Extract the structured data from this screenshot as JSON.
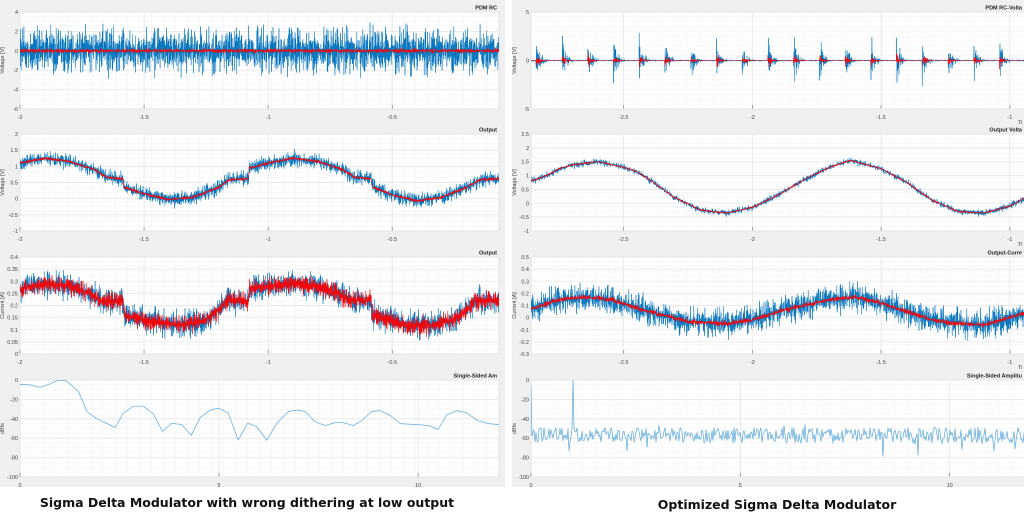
{
  "captions": {
    "left": "Sigma Delta Modulator with wrong dithering at low output",
    "right": "Optimized Sigma Delta Modulator"
  },
  "colors": {
    "raw": "#0072BD",
    "raw_light": "#5aa9dc",
    "filtered": "#FF0000",
    "grid": "#e6e6e6",
    "axes": "#c8c8c8",
    "figure_bg": "#f0f0f0"
  },
  "chart_data": [
    {
      "id": "left-pdm",
      "panel": "left",
      "type": "line",
      "title": "PDM RC",
      "ylabel": "Voltage [V]",
      "xlabel": "",
      "xlim": [
        -2,
        -0.07
      ],
      "ylim": [
        -6,
        4
      ],
      "xticks": [
        -2,
        -1.5,
        -1,
        -0.5
      ],
      "yticks": [
        4,
        2,
        0,
        -2,
        -4,
        -6
      ],
      "grid": true,
      "series": [
        {
          "color": "#0072BD",
          "kind": "noise",
          "mean_x": [
            -2,
            -0.07
          ],
          "mean_y": [
            0,
            0
          ],
          "spread": 3.0
        },
        {
          "color": "#FF0000",
          "kind": "noise",
          "mean_x": [
            -2,
            -0.07
          ],
          "mean_y": [
            0,
            0
          ],
          "spread": 0.3
        }
      ]
    },
    {
      "id": "left-vout",
      "panel": "left",
      "type": "line",
      "title": "Output",
      "ylabel": "Voltage [V]",
      "xlabel": "",
      "xlim": [
        -2,
        -0.07
      ],
      "ylim": [
        -1,
        2
      ],
      "xticks": [
        -2,
        -1.5,
        -1,
        -0.5
      ],
      "yticks": [
        2,
        1.5,
        1,
        0.5,
        0,
        -0.5,
        -1
      ],
      "grid": true,
      "series": [
        {
          "color": "#0072BD",
          "kind": "noise",
          "spread": 0.3,
          "mean_x": [
            -2,
            -1.9,
            -1.8,
            -1.7,
            -1.65,
            -1.585,
            -1.58,
            -1.5,
            -1.4,
            -1.3,
            -1.2,
            -1.16,
            -1.08,
            -1.075,
            -1.0,
            -0.9,
            -0.8,
            -0.7,
            -0.65,
            -0.585,
            -0.58,
            -0.5,
            -0.4,
            -0.3,
            -0.2,
            -0.15,
            -0.07
          ],
          "mean_y": [
            1.1,
            1.25,
            1.15,
            0.9,
            0.65,
            0.62,
            0.35,
            0.15,
            -0.03,
            0.05,
            0.35,
            0.58,
            0.62,
            0.95,
            1.1,
            1.25,
            1.15,
            0.9,
            0.65,
            0.62,
            0.35,
            0.12,
            -0.07,
            0.05,
            0.35,
            0.58,
            0.62
          ]
        },
        {
          "color": "#FF0000",
          "kind": "noise",
          "spread": 0.07,
          "mean_x": [
            -2,
            -1.9,
            -1.8,
            -1.7,
            -1.65,
            -1.585,
            -1.58,
            -1.5,
            -1.4,
            -1.3,
            -1.2,
            -1.16,
            -1.08,
            -1.075,
            -1.0,
            -0.9,
            -0.8,
            -0.7,
            -0.65,
            -0.585,
            -0.58,
            -0.5,
            -0.4,
            -0.3,
            -0.2,
            -0.15,
            -0.07
          ],
          "mean_y": [
            1.1,
            1.25,
            1.15,
            0.9,
            0.65,
            0.62,
            0.35,
            0.15,
            -0.03,
            0.05,
            0.35,
            0.58,
            0.62,
            0.95,
            1.1,
            1.25,
            1.15,
            0.9,
            0.65,
            0.62,
            0.35,
            0.12,
            -0.07,
            0.05,
            0.35,
            0.58,
            0.62
          ]
        }
      ]
    },
    {
      "id": "left-iout",
      "panel": "left",
      "type": "line",
      "title": "Output",
      "ylabel": "Current [A]",
      "xlabel": "",
      "xlim": [
        -2,
        -0.07
      ],
      "ylim": [
        0,
        0.4
      ],
      "xticks": [
        -2,
        -1.5,
        -1,
        -0.5
      ],
      "yticks": [
        0.4,
        0.35,
        0.3,
        0.25,
        0.2,
        0.15,
        0.1,
        0.05,
        0
      ],
      "grid": true,
      "series": [
        {
          "color": "#0072BD",
          "kind": "noise",
          "spread": 0.07,
          "mean_x": [
            -2,
            -1.9,
            -1.8,
            -1.72,
            -1.67,
            -1.585,
            -1.58,
            -1.45,
            -1.35,
            -1.25,
            -1.18,
            -1.17,
            -1.08,
            -1.075,
            -0.9,
            -0.8,
            -0.72,
            -0.67,
            -0.585,
            -0.58,
            -0.45,
            -0.35,
            -0.25,
            -0.18,
            -0.17,
            -0.07
          ],
          "mean_y": [
            0.27,
            0.29,
            0.28,
            0.25,
            0.22,
            0.22,
            0.16,
            0.13,
            0.12,
            0.14,
            0.2,
            0.22,
            0.22,
            0.27,
            0.29,
            0.28,
            0.25,
            0.22,
            0.22,
            0.16,
            0.12,
            0.12,
            0.14,
            0.2,
            0.22,
            0.22
          ]
        },
        {
          "color": "#FF0000",
          "kind": "noise",
          "spread": 0.05,
          "mean_x": [
            -2,
            -1.9,
            -1.8,
            -1.72,
            -1.67,
            -1.585,
            -1.58,
            -1.45,
            -1.35,
            -1.25,
            -1.18,
            -1.17,
            -1.08,
            -1.075,
            -0.9,
            -0.8,
            -0.72,
            -0.67,
            -0.585,
            -0.58,
            -0.45,
            -0.35,
            -0.25,
            -0.18,
            -0.17,
            -0.07
          ],
          "mean_y": [
            0.27,
            0.29,
            0.28,
            0.25,
            0.22,
            0.22,
            0.16,
            0.13,
            0.12,
            0.14,
            0.2,
            0.22,
            0.22,
            0.27,
            0.29,
            0.28,
            0.25,
            0.22,
            0.22,
            0.16,
            0.12,
            0.12,
            0.14,
            0.2,
            0.22,
            0.22
          ]
        }
      ]
    },
    {
      "id": "left-fft",
      "panel": "left",
      "type": "line",
      "title": "Single-Sided Am",
      "ylabel": "dBfs",
      "xlabel": "",
      "xlim": [
        0,
        12.03
      ],
      "ylim": [
        -100,
        0
      ],
      "xticks": [
        0,
        5,
        10
      ],
      "yticks": [
        0,
        -20,
        -40,
        -60,
        -80,
        -100
      ],
      "grid": true,
      "series": [
        {
          "color": "#5aa9dc",
          "kind": "line",
          "x": [
            0,
            0.25,
            0.5,
            0.75,
            0.96,
            1.17,
            1.47,
            1.68,
            1.93,
            2.39,
            2.6,
            2.85,
            3.1,
            3.35,
            3.58,
            3.81,
            4.06,
            4.3,
            4.52,
            4.77,
            4.98,
            5.23,
            5.48,
            5.72,
            5.94,
            6.2,
            6.45,
            6.74,
            6.95,
            7.16,
            7.41,
            7.66,
            7.91,
            8.12,
            8.37,
            8.58,
            8.83,
            9.04,
            9.3,
            9.55,
            9.97,
            10.26,
            10.5,
            10.72,
            10.97,
            11.2,
            11.5,
            11.77,
            12.02
          ],
          "y": [
            -4.5,
            -5,
            -7.5,
            -4,
            0,
            -1,
            -12,
            -32.5,
            -40,
            -49,
            -34,
            -27,
            -27,
            -35,
            -53,
            -44.5,
            -46,
            -57,
            -39,
            -31,
            -29,
            -34,
            -62,
            -44.5,
            -48,
            -62,
            -44.5,
            -32.5,
            -31,
            -32.5,
            -43,
            -47,
            -44,
            -44,
            -47,
            -42,
            -32.5,
            -31.5,
            -36.6,
            -45,
            -46,
            -47,
            -51,
            -36,
            -31.5,
            -33.5,
            -42,
            -45,
            -46
          ]
        }
      ]
    },
    {
      "id": "right-pdm",
      "panel": "right",
      "type": "line",
      "title": "PDM RC-Volta",
      "ylabel": "Voltage [V]",
      "xlabel": "Ti",
      "xlim": [
        -2.86,
        -0.84
      ],
      "ylim": [
        -5,
        5
      ],
      "xticks": [
        -2.5,
        -2,
        -1.5,
        -1
      ],
      "yticks": [
        5,
        0,
        -5
      ],
      "grid": true,
      "series": [
        {
          "color": "#0072BD",
          "kind": "bursts",
          "burst_period": 0.1,
          "spread": 3.5,
          "mean_x": [
            -2.86,
            -0.84
          ],
          "mean_y": [
            0,
            0
          ]
        },
        {
          "color": "#FF0000",
          "kind": "bursts",
          "burst_period": 0.1,
          "spread": 1.0,
          "mean_x": [
            -2.86,
            -0.84
          ],
          "mean_y": [
            0,
            0
          ]
        }
      ]
    },
    {
      "id": "right-vout",
      "panel": "right",
      "type": "line",
      "title": "Output Volta",
      "ylabel": "Voltage [V]",
      "xlabel": "Ti",
      "xlim": [
        -2.86,
        -0.84
      ],
      "ylim": [
        -1,
        2.5
      ],
      "xticks": [
        -2.5,
        -2,
        -1.5,
        -1
      ],
      "yticks": [
        2.5,
        2,
        1.5,
        1,
        0.5,
        0,
        -0.5,
        -1
      ],
      "grid": true,
      "series": [
        {
          "color": "#0072BD",
          "kind": "noise",
          "spread": 0.15,
          "mean_x": [
            -2.86,
            -2.8,
            -2.75,
            -2.7,
            -2.6,
            -2.5,
            -2.45,
            -2.4,
            -2.3,
            -2.2,
            -2.1,
            -2.0,
            -1.9,
            -1.8,
            -1.7,
            -1.62,
            -1.5,
            -1.4,
            -1.3,
            -1.2,
            -1.1,
            -1.0,
            -0.9,
            -0.84
          ],
          "mean_y": [
            0.8,
            1.0,
            1.25,
            1.38,
            1.5,
            1.3,
            1.15,
            0.85,
            0.2,
            -0.25,
            -0.35,
            -0.15,
            0.3,
            0.85,
            1.3,
            1.55,
            1.25,
            0.75,
            0.1,
            -0.3,
            -0.35,
            -0.1,
            0.4,
            0.75
          ]
        },
        {
          "color": "#FF0000",
          "kind": "noise",
          "spread": 0.05,
          "mean_x": [
            -2.86,
            -2.8,
            -2.75,
            -2.7,
            -2.6,
            -2.5,
            -2.45,
            -2.4,
            -2.3,
            -2.2,
            -2.1,
            -2.0,
            -1.9,
            -1.8,
            -1.7,
            -1.62,
            -1.5,
            -1.4,
            -1.3,
            -1.2,
            -1.1,
            -1.0,
            -0.9,
            -0.84
          ],
          "mean_y": [
            0.8,
            1.0,
            1.25,
            1.38,
            1.5,
            1.3,
            1.15,
            0.85,
            0.2,
            -0.25,
            -0.35,
            -0.15,
            0.3,
            0.85,
            1.3,
            1.55,
            1.25,
            0.75,
            0.1,
            -0.3,
            -0.35,
            -0.1,
            0.4,
            0.75
          ]
        }
      ]
    },
    {
      "id": "right-iout",
      "panel": "right",
      "type": "line",
      "title": "Output-Curre",
      "ylabel": "Current [A]",
      "xlabel": "Ti",
      "xlim": [
        -2.86,
        -0.84
      ],
      "ylim": [
        -0.3,
        0.5
      ],
      "xticks": [
        -2.5,
        -2,
        -1.5,
        -1
      ],
      "yticks": [
        0.5,
        0.4,
        0.3,
        0.2,
        0.1,
        0,
        -0.1,
        -0.2,
        -0.3
      ],
      "grid": true,
      "series": [
        {
          "color": "#0072BD",
          "kind": "noise",
          "spread": 0.15,
          "mean_x": [
            -2.86,
            -2.75,
            -2.65,
            -2.55,
            -2.45,
            -2.35,
            -2.25,
            -2.1,
            -2.0,
            -1.9,
            -1.8,
            -1.7,
            -1.6,
            -1.5,
            -1.4,
            -1.3,
            -1.2,
            -1.1,
            -1.0,
            -0.9,
            -0.84
          ],
          "mean_y": [
            0.07,
            0.15,
            0.17,
            0.15,
            0.08,
            0.02,
            -0.03,
            -0.05,
            -0.02,
            0.05,
            0.1,
            0.15,
            0.17,
            0.12,
            0.05,
            -0.02,
            -0.05,
            -0.06,
            0.0,
            0.07,
            0.1
          ]
        },
        {
          "color": "#FF0000",
          "kind": "noise",
          "spread": 0.03,
          "mean_x": [
            -2.86,
            -2.75,
            -2.65,
            -2.55,
            -2.45,
            -2.35,
            -2.25,
            -2.1,
            -2.0,
            -1.9,
            -1.8,
            -1.7,
            -1.6,
            -1.5,
            -1.4,
            -1.3,
            -1.2,
            -1.1,
            -1.0,
            -0.9,
            -0.84
          ],
          "mean_y": [
            0.07,
            0.15,
            0.17,
            0.15,
            0.08,
            0.02,
            -0.03,
            -0.05,
            -0.02,
            0.05,
            0.1,
            0.15,
            0.17,
            0.12,
            0.05,
            -0.02,
            -0.05,
            -0.06,
            0.0,
            0.07,
            0.1
          ]
        }
      ]
    },
    {
      "id": "right-fft",
      "panel": "right",
      "type": "line",
      "title": "Single-Sided Amplitu",
      "ylabel": "dBfs",
      "xlabel": "",
      "xlim": [
        0,
        12.42
      ],
      "ylim": [
        -100,
        0
      ],
      "xticks": [
        0,
        5,
        10
      ],
      "yticks": [
        0,
        -20,
        -40,
        -60,
        -80,
        -100
      ],
      "grid": true,
      "series": [
        {
          "color": "#5aa9dc",
          "kind": "floor",
          "floor_db": -57,
          "spread": 8,
          "spikes_x": [
            0,
            1.0
          ],
          "spikes_y": [
            -5,
            0
          ]
        }
      ]
    }
  ]
}
